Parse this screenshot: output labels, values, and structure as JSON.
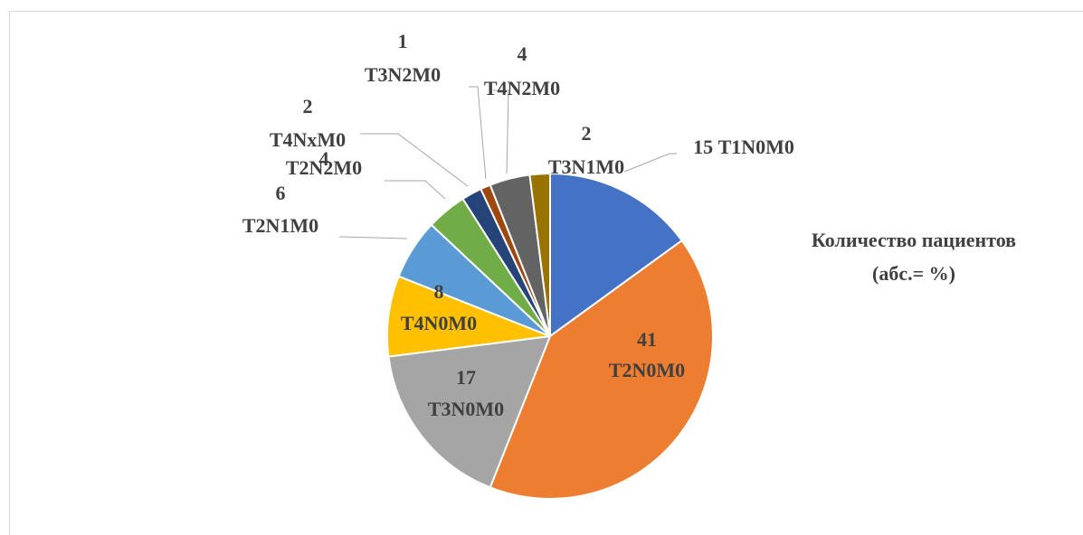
{
  "chart_data": {
    "type": "pie",
    "title": [
      "Количество пациентов",
      "(абс.= %)"
    ],
    "categories": [
      "T1N0M0",
      "T2N0M0",
      "T3N0M0",
      "T4N0M0",
      "T2N1M0",
      "T2N2M0",
      "T4NxM0",
      "T3N2M0",
      "T4N2M0",
      "T3N1M0"
    ],
    "values": [
      15,
      41,
      17,
      8,
      6,
      4,
      2,
      1,
      4,
      2
    ],
    "colors": [
      "#4472c4",
      "#ed7d31",
      "#a5a5a5",
      "#ffc000",
      "#5b9bd5",
      "#70ad47",
      "#264478",
      "#9e480e",
      "#636363",
      "#997300"
    ]
  }
}
